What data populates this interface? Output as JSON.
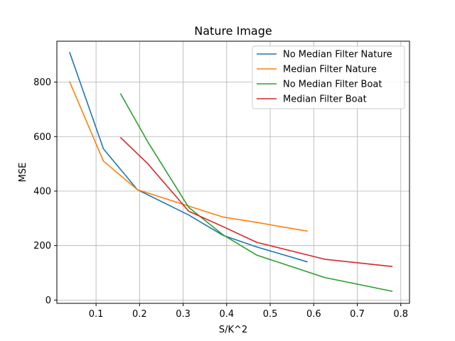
{
  "chart_data": {
    "type": "line",
    "title": "Nature Image",
    "xlabel": "S/K^2",
    "ylabel": "MSE",
    "xlim": [
      0.01,
      0.82
    ],
    "ylim": [
      -12,
      950
    ],
    "xticks": [
      0.1,
      0.2,
      0.3,
      0.4,
      0.5,
      0.6,
      0.7,
      0.8
    ],
    "yticks": [
      0,
      200,
      400,
      600,
      800
    ],
    "grid": true,
    "legend_position": "top-right",
    "series": [
      {
        "name": "No Median Filter Nature",
        "color": "#1f77b4",
        "x": [
          0.039,
          0.117,
          0.195,
          0.313,
          0.391,
          0.469,
          0.586
        ],
        "y": [
          910,
          555,
          405,
          312,
          238,
          195,
          140
        ]
      },
      {
        "name": "Median Filter Nature",
        "color": "#ff7f0e",
        "x": [
          0.039,
          0.117,
          0.195,
          0.313,
          0.391,
          0.469,
          0.586
        ],
        "y": [
          802,
          510,
          405,
          345,
          305,
          285,
          253
        ]
      },
      {
        "name": "No Median Filter Boat",
        "color": "#2ca02c",
        "x": [
          0.156,
          0.219,
          0.313,
          0.391,
          0.469,
          0.625,
          0.781
        ],
        "y": [
          758,
          580,
          340,
          240,
          165,
          83,
          32
        ]
      },
      {
        "name": "Median Filter Boat",
        "color": "#d62728",
        "x": [
          0.156,
          0.219,
          0.313,
          0.391,
          0.469,
          0.625,
          0.781
        ],
        "y": [
          597,
          500,
          326,
          270,
          212,
          150,
          123
        ]
      }
    ]
  }
}
